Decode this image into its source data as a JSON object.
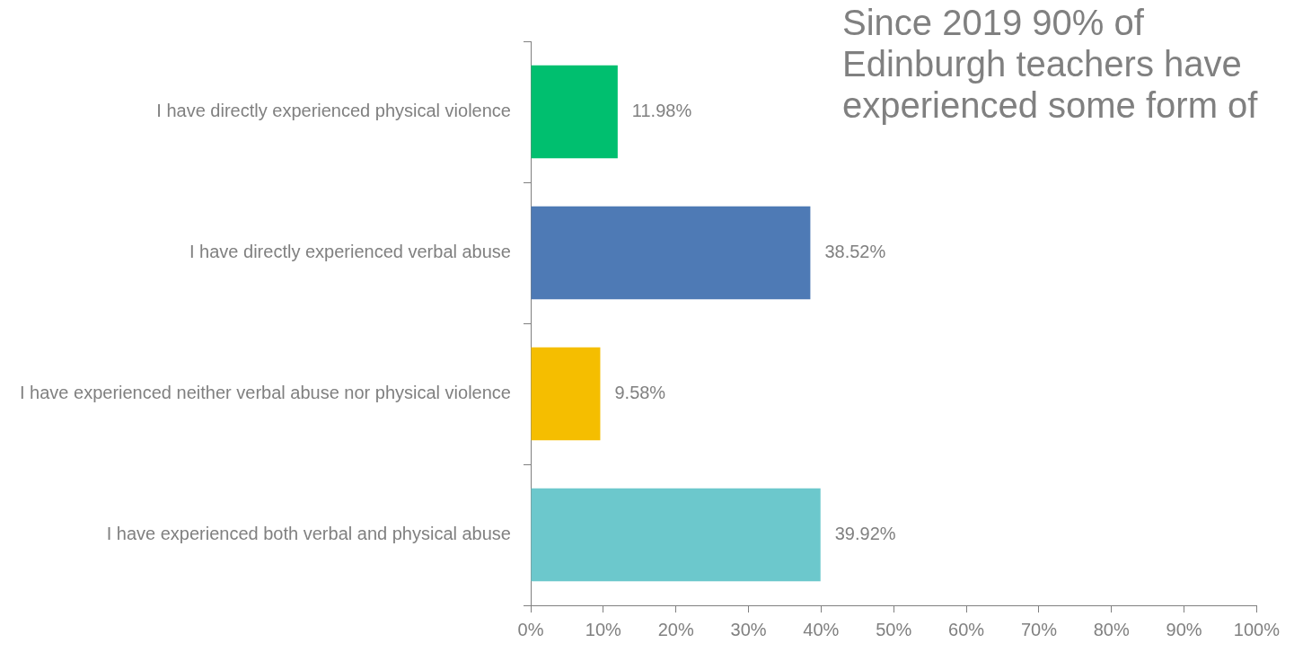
{
  "chart_data": {
    "type": "bar",
    "orientation": "horizontal",
    "title": "Since 2019 90% of Edinburgh teachers have experienced some form of",
    "categories": [
      "I have directly experienced physical violence",
      "I have directly experienced verbal abuse",
      "I have experienced neither verbal abuse nor physical violence",
      "I have experienced both verbal and physical abuse"
    ],
    "values": [
      11.98,
      38.52,
      9.58,
      39.92
    ],
    "value_labels": [
      "11.98%",
      "38.52%",
      "9.58%",
      "39.92%"
    ],
    "colors": [
      "#00bf6f",
      "#4e7ab5",
      "#f5be00",
      "#6cc8cc"
    ],
    "xlim": [
      0,
      100
    ],
    "xticks": [
      {
        "value": 0,
        "label": "0%"
      },
      {
        "value": 10,
        "label": "10%"
      },
      {
        "value": 20,
        "label": "20%"
      },
      {
        "value": 30,
        "label": "30%"
      },
      {
        "value": 40,
        "label": "40%"
      },
      {
        "value": 50,
        "label": "50%"
      },
      {
        "value": 60,
        "label": "60%"
      },
      {
        "value": 70,
        "label": "70%"
      },
      {
        "value": 80,
        "label": "80%"
      },
      {
        "value": 90,
        "label": "90%"
      },
      {
        "value": 100,
        "label": "100%"
      }
    ],
    "grid": false,
    "legend": false
  }
}
